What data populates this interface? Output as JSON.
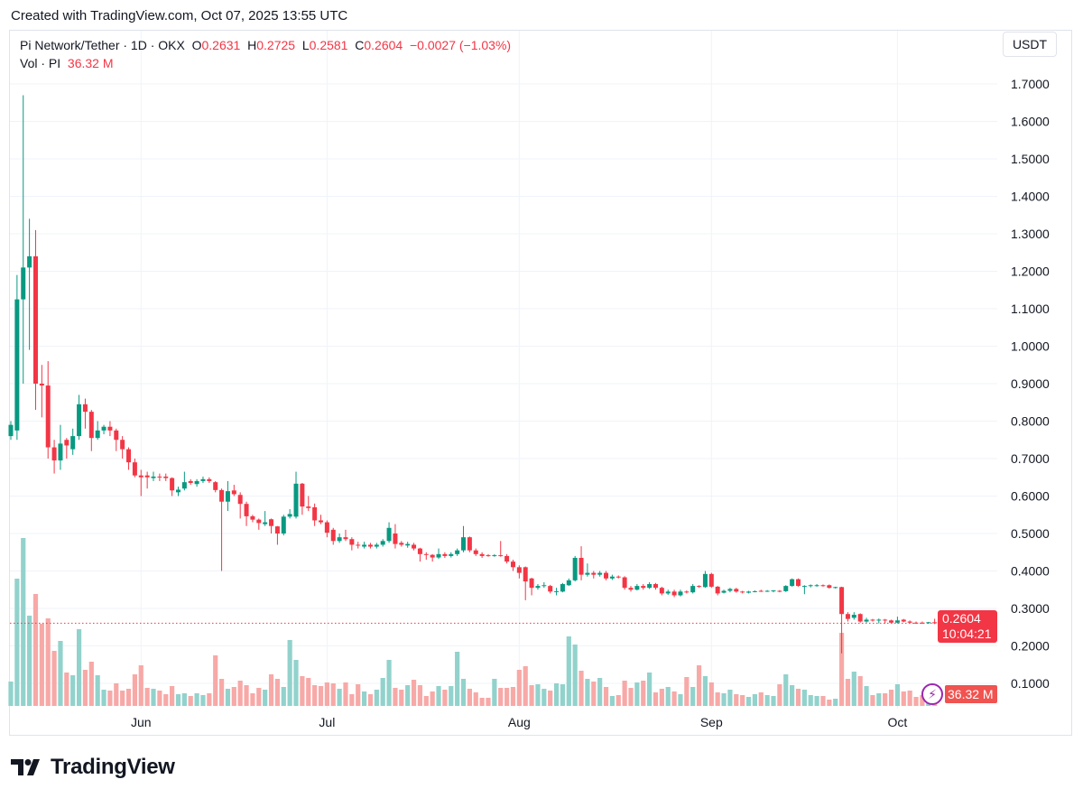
{
  "caption": "Created with TradingView.com, Oct 07, 2025 13:55 UTC",
  "legend": {
    "symbol": "Pi Network/Tether · 1D · OKX",
    "o_label": "O",
    "o_value": "0.2631",
    "h_label": "H",
    "h_value": "0.2725",
    "l_label": "L",
    "l_value": "0.2581",
    "c_label": "C",
    "c_value": "0.2604",
    "change": "−0.0027 (−1.03%)",
    "vol_label": "Vol · PI",
    "vol_value": "36.32 M"
  },
  "currency_button": "USDT",
  "last_price": {
    "value": "0.2604",
    "countdown": "10:04:21"
  },
  "last_volume": "36.32 M",
  "footer_brand": "TradingView",
  "colors": {
    "up": "#089981",
    "down": "#f23645",
    "vol_up": "#92d2cc",
    "vol_down": "#f7a9a7",
    "grid": "#f0f3fa",
    "indicator": "#9c27b0"
  },
  "chart_data": {
    "type": "candlestick",
    "title": "Pi Network/Tether · 1D · OKX",
    "ylabel": "USDT",
    "ylim": [
      0.1,
      1.7
    ],
    "y_ticks": [
      "1.7000",
      "1.6000",
      "1.5000",
      "1.4000",
      "1.3000",
      "1.2000",
      "1.1000",
      "1.0000",
      "0.9000",
      "0.8000",
      "0.7000",
      "0.6000",
      "0.5000",
      "0.4000",
      "0.3000",
      "0.2000",
      "0.1000"
    ],
    "x_ticks": [
      {
        "label": "Jun",
        "index": 21
      },
      {
        "label": "Jul",
        "index": 51
      },
      {
        "label": "Aug",
        "index": 82
      },
      {
        "label": "Sep",
        "index": 113
      },
      {
        "label": "Oct",
        "index": 143
      }
    ],
    "candles_ohlc": [
      [
        0.76,
        0.8,
        0.75,
        0.79
      ],
      [
        0.775,
        1.19,
        0.75,
        1.125
      ],
      [
        1.125,
        1.67,
        0.9,
        1.21
      ],
      [
        1.21,
        1.34,
        0.99,
        1.24
      ],
      [
        1.24,
        1.31,
        0.83,
        0.9
      ],
      [
        0.9,
        0.95,
        0.81,
        0.895
      ],
      [
        0.895,
        0.96,
        0.7,
        0.73
      ],
      [
        0.73,
        0.75,
        0.66,
        0.695
      ],
      [
        0.695,
        0.79,
        0.67,
        0.74
      ],
      [
        0.75,
        0.755,
        0.7,
        0.735
      ],
      [
        0.725,
        0.78,
        0.71,
        0.76
      ],
      [
        0.76,
        0.87,
        0.75,
        0.845
      ],
      [
        0.845,
        0.86,
        0.78,
        0.825
      ],
      [
        0.825,
        0.83,
        0.72,
        0.755
      ],
      [
        0.755,
        0.8,
        0.75,
        0.775
      ],
      [
        0.775,
        0.79,
        0.765,
        0.785
      ],
      [
        0.785,
        0.8,
        0.76,
        0.775
      ],
      [
        0.775,
        0.78,
        0.72,
        0.75
      ],
      [
        0.75,
        0.76,
        0.7,
        0.725
      ],
      [
        0.725,
        0.73,
        0.67,
        0.69
      ],
      [
        0.69,
        0.7,
        0.65,
        0.655
      ],
      [
        0.655,
        0.67,
        0.6,
        0.65
      ],
      [
        0.655,
        0.665,
        0.62,
        0.65
      ],
      [
        0.648,
        0.665,
        0.64,
        0.652
      ],
      [
        0.652,
        0.66,
        0.64,
        0.65
      ],
      [
        0.652,
        0.66,
        0.64,
        0.648
      ],
      [
        0.648,
        0.65,
        0.6,
        0.615
      ],
      [
        0.61,
        0.625,
        0.6,
        0.617
      ],
      [
        0.62,
        0.665,
        0.615,
        0.637
      ],
      [
        0.64,
        0.645,
        0.63,
        0.635
      ],
      [
        0.632,
        0.645,
        0.625,
        0.64
      ],
      [
        0.64,
        0.652,
        0.635,
        0.645
      ],
      [
        0.645,
        0.65,
        0.635,
        0.64
      ],
      [
        0.637,
        0.64,
        0.61,
        0.616
      ],
      [
        0.616,
        0.62,
        0.4,
        0.585
      ],
      [
        0.585,
        0.64,
        0.56,
        0.613
      ],
      [
        0.615,
        0.63,
        0.6,
        0.605
      ],
      [
        0.603,
        0.61,
        0.54,
        0.579
      ],
      [
        0.579,
        0.585,
        0.52,
        0.546
      ],
      [
        0.546,
        0.55,
        0.53,
        0.537
      ],
      [
        0.537,
        0.54,
        0.51,
        0.528
      ],
      [
        0.525,
        0.56,
        0.52,
        0.53
      ],
      [
        0.538,
        0.54,
        0.5,
        0.52
      ],
      [
        0.519,
        0.52,
        0.47,
        0.5
      ],
      [
        0.5,
        0.55,
        0.495,
        0.545
      ],
      [
        0.545,
        0.565,
        0.54,
        0.552
      ],
      [
        0.545,
        0.665,
        0.54,
        0.633
      ],
      [
        0.633,
        0.635,
        0.55,
        0.572
      ],
      [
        0.572,
        0.6,
        0.56,
        0.568
      ],
      [
        0.57,
        0.58,
        0.52,
        0.535
      ],
      [
        0.535,
        0.55,
        0.525,
        0.53
      ],
      [
        0.53,
        0.535,
        0.49,
        0.502
      ],
      [
        0.51,
        0.515,
        0.47,
        0.48
      ],
      [
        0.48,
        0.5,
        0.475,
        0.49
      ],
      [
        0.49,
        0.51,
        0.48,
        0.485
      ],
      [
        0.485,
        0.49,
        0.455,
        0.47
      ],
      [
        0.47,
        0.478,
        0.46,
        0.468
      ],
      [
        0.465,
        0.478,
        0.46,
        0.47
      ],
      [
        0.47,
        0.475,
        0.46,
        0.465
      ],
      [
        0.465,
        0.475,
        0.46,
        0.47
      ],
      [
        0.47,
        0.485,
        0.465,
        0.48
      ],
      [
        0.48,
        0.53,
        0.475,
        0.515
      ],
      [
        0.5,
        0.525,
        0.46,
        0.472
      ],
      [
        0.475,
        0.48,
        0.465,
        0.47
      ],
      [
        0.468,
        0.478,
        0.462,
        0.472
      ],
      [
        0.47,
        0.475,
        0.455,
        0.46
      ],
      [
        0.46,
        0.462,
        0.425,
        0.445
      ],
      [
        0.445,
        0.45,
        0.43,
        0.443
      ],
      [
        0.443,
        0.445,
        0.425,
        0.436
      ],
      [
        0.436,
        0.46,
        0.432,
        0.445
      ],
      [
        0.445,
        0.45,
        0.435,
        0.44
      ],
      [
        0.44,
        0.45,
        0.436,
        0.445
      ],
      [
        0.445,
        0.46,
        0.44,
        0.455
      ],
      [
        0.455,
        0.52,
        0.45,
        0.49
      ],
      [
        0.49,
        0.492,
        0.45,
        0.455
      ],
      [
        0.455,
        0.46,
        0.44,
        0.445
      ],
      [
        0.445,
        0.45,
        0.435,
        0.44
      ],
      [
        0.442,
        0.445,
        0.438,
        0.44
      ],
      [
        0.44,
        0.445,
        0.438,
        0.442
      ],
      [
        0.442,
        0.48,
        0.438,
        0.44
      ],
      [
        0.44,
        0.445,
        0.42,
        0.425
      ],
      [
        0.425,
        0.43,
        0.4,
        0.41
      ],
      [
        0.41,
        0.415,
        0.38,
        0.395
      ],
      [
        0.41,
        0.412,
        0.322,
        0.372
      ],
      [
        0.38,
        0.382,
        0.335,
        0.355
      ],
      [
        0.355,
        0.365,
        0.35,
        0.36
      ],
      [
        0.36,
        0.37,
        0.355,
        0.362
      ],
      [
        0.36,
        0.363,
        0.34,
        0.345
      ],
      [
        0.345,
        0.355,
        0.335,
        0.346
      ],
      [
        0.345,
        0.368,
        0.343,
        0.365
      ],
      [
        0.362,
        0.38,
        0.36,
        0.375
      ],
      [
        0.375,
        0.44,
        0.372,
        0.435
      ],
      [
        0.435,
        0.466,
        0.375,
        0.39
      ],
      [
        0.39,
        0.42,
        0.385,
        0.395
      ],
      [
        0.395,
        0.4,
        0.38,
        0.39
      ],
      [
        0.39,
        0.4,
        0.385,
        0.395
      ],
      [
        0.395,
        0.4,
        0.375,
        0.38
      ],
      [
        0.38,
        0.39,
        0.376,
        0.385
      ],
      [
        0.385,
        0.388,
        0.38,
        0.383
      ],
      [
        0.383,
        0.386,
        0.35,
        0.355
      ],
      [
        0.355,
        0.36,
        0.345,
        0.35
      ],
      [
        0.35,
        0.365,
        0.348,
        0.36
      ],
      [
        0.36,
        0.365,
        0.35,
        0.355
      ],
      [
        0.355,
        0.37,
        0.352,
        0.365
      ],
      [
        0.365,
        0.368,
        0.35,
        0.355
      ],
      [
        0.355,
        0.358,
        0.335,
        0.34
      ],
      [
        0.34,
        0.35,
        0.336,
        0.345
      ],
      [
        0.345,
        0.35,
        0.33,
        0.335
      ],
      [
        0.335,
        0.35,
        0.332,
        0.345
      ],
      [
        0.345,
        0.348,
        0.34,
        0.343
      ],
      [
        0.343,
        0.365,
        0.34,
        0.36
      ],
      [
        0.36,
        0.362,
        0.355,
        0.358
      ],
      [
        0.357,
        0.4,
        0.355,
        0.392
      ],
      [
        0.392,
        0.395,
        0.355,
        0.358
      ],
      [
        0.358,
        0.36,
        0.335,
        0.34
      ],
      [
        0.342,
        0.35,
        0.34,
        0.347
      ],
      [
        0.347,
        0.355,
        0.343,
        0.352
      ],
      [
        0.352,
        0.355,
        0.342,
        0.345
      ],
      [
        0.345,
        0.347,
        0.34,
        0.343
      ],
      [
        0.342,
        0.347,
        0.34,
        0.345
      ],
      [
        0.345,
        0.348,
        0.343,
        0.346
      ],
      [
        0.347,
        0.35,
        0.344,
        0.346
      ],
      [
        0.346,
        0.349,
        0.344,
        0.347
      ],
      [
        0.347,
        0.349,
        0.343,
        0.348
      ],
      [
        0.347,
        0.349,
        0.343,
        0.346
      ],
      [
        0.346,
        0.362,
        0.344,
        0.36
      ],
      [
        0.36,
        0.38,
        0.358,
        0.378
      ],
      [
        0.378,
        0.38,
        0.358,
        0.36
      ],
      [
        0.358,
        0.362,
        0.338,
        0.36
      ],
      [
        0.36,
        0.364,
        0.356,
        0.362
      ],
      [
        0.362,
        0.365,
        0.358,
        0.362
      ],
      [
        0.362,
        0.364,
        0.358,
        0.36
      ],
      [
        0.362,
        0.364,
        0.353,
        0.355
      ],
      [
        0.355,
        0.358,
        0.353,
        0.357
      ],
      [
        0.357,
        0.358,
        0.18,
        0.285
      ],
      [
        0.285,
        0.29,
        0.265,
        0.272
      ],
      [
        0.275,
        0.29,
        0.27,
        0.283
      ],
      [
        0.285,
        0.287,
        0.262,
        0.265
      ],
      [
        0.265,
        0.275,
        0.262,
        0.27
      ],
      [
        0.27,
        0.272,
        0.265,
        0.268
      ],
      [
        0.268,
        0.273,
        0.26,
        0.27
      ],
      [
        0.27,
        0.272,
        0.26,
        0.268
      ],
      [
        0.268,
        0.27,
        0.26,
        0.262
      ],
      [
        0.262,
        0.278,
        0.26,
        0.268
      ],
      [
        0.27,
        0.272,
        0.263,
        0.265
      ],
      [
        0.265,
        0.268,
        0.26,
        0.262
      ],
      [
        0.262,
        0.265,
        0.259,
        0.261
      ],
      [
        0.262,
        0.265,
        0.259,
        0.2615
      ],
      [
        0.2615,
        0.264,
        0.259,
        0.2631
      ],
      [
        0.2631,
        0.2725,
        0.2581,
        0.2604
      ]
    ],
    "volume_millions": [
      81,
      423,
      558,
      300,
      372,
      273,
      291,
      183,
      216,
      111,
      102,
      255,
      120,
      147,
      102,
      54,
      51,
      75,
      51,
      57,
      105,
      135,
      60,
      57,
      51,
      39,
      66,
      39,
      42,
      33,
      42,
      36,
      42,
      168,
      90,
      57,
      63,
      84,
      69,
      42,
      60,
      54,
      105,
      90,
      63,
      219,
      153,
      99,
      93,
      69,
      66,
      78,
      75,
      57,
      78,
      39,
      72,
      48,
      39,
      54,
      93,
      153,
      60,
      54,
      69,
      87,
      69,
      33,
      48,
      66,
      54,
      66,
      180,
      90,
      57,
      45,
      27,
      27,
      90,
      60,
      60,
      63,
      120,
      132,
      69,
      72,
      57,
      51,
      75,
      72,
      231,
      204,
      117,
      90,
      81,
      93,
      63,
      33,
      36,
      84,
      60,
      78,
      84,
      111,
      45,
      57,
      63,
      48,
      39,
      96,
      63,
      135,
      99,
      78,
      45,
      42,
      54,
      39,
      36,
      30,
      39,
      45,
      36,
      33,
      72,
      105,
      69,
      57,
      54,
      36,
      33,
      33,
      21,
      24,
      243,
      90,
      114,
      99,
      66,
      36,
      42,
      42,
      54,
      72,
      48,
      51,
      30,
      36,
      27,
      36.32
    ],
    "last_price_line": 0.2604
  }
}
